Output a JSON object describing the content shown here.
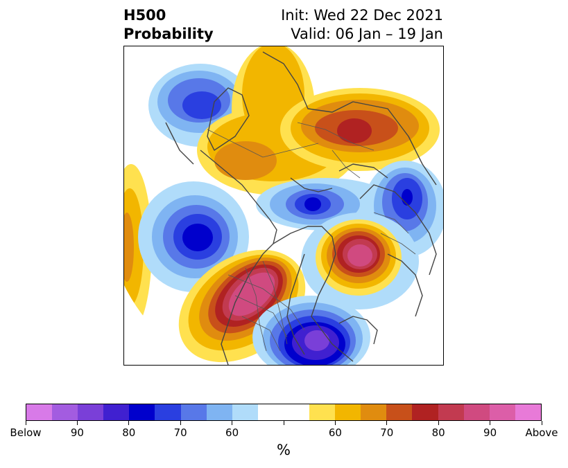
{
  "header": {
    "field": "H500",
    "product": "Probability",
    "init": "Init: Wed 22 Dec 2021",
    "valid": "Valid: 06 Jan – 19 Jan"
  },
  "colorbar": {
    "unit": "%",
    "colors": [
      "#d87ae8",
      "#a35ce0",
      "#7a3fd8",
      "#4020d0",
      "#0000cc",
      "#2a3fe0",
      "#5878e8",
      "#7fb4f2",
      "#b0dcfa",
      "#ffffff",
      "#ffffff",
      "#ffe14f",
      "#f2b600",
      "#e08c0f",
      "#c8501a",
      "#b02222",
      "#c23a50",
      "#d04a80",
      "#dc5ea8",
      "#e87ad8"
    ],
    "tick_labels": [
      "Below",
      "90",
      "80",
      "70",
      "60",
      "60",
      "70",
      "80",
      "90",
      "Above"
    ]
  },
  "map": {
    "anomalies": [
      {
        "name": "below-pacific-south",
        "kind": "below",
        "level": 0.9
      },
      {
        "name": "below-baffin",
        "kind": "below",
        "level": 0.8
      },
      {
        "name": "below-eastern-us",
        "kind": "below",
        "level": 0.9
      },
      {
        "name": "below-europe",
        "kind": "below",
        "level": 0.8
      },
      {
        "name": "below-alaska-sea",
        "kind": "below",
        "level": 0.7
      },
      {
        "name": "above-western-us",
        "kind": "above",
        "level": 0.9
      },
      {
        "name": "above-north-atlantic",
        "kind": "above",
        "level": 0.9
      },
      {
        "name": "above-siberia",
        "kind": "above",
        "level": 0.8
      },
      {
        "name": "above-arctic",
        "kind": "above",
        "level": 0.7
      }
    ]
  }
}
